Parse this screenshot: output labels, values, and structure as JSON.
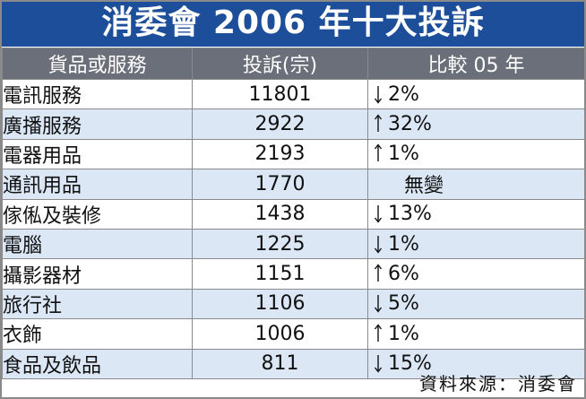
{
  "title": "消委會 2006 年十大投訴",
  "source": "資料來源：消委會",
  "colors": {
    "title_bg": "#1d4e9a",
    "header_bg": "#6a6f79",
    "row_alt_bg": "#dce7f6"
  },
  "chart_data": {
    "type": "table",
    "title": "消委會 2006 年十大投訴",
    "columns": [
      "貨品或服務",
      "投訴(宗)",
      "比較 05 年"
    ],
    "rows": [
      {
        "category": "電訊服務",
        "complaints": "11801",
        "direction": "down",
        "change": "2%"
      },
      {
        "category": "廣播服務",
        "complaints": "2922",
        "direction": "up",
        "change": "32%"
      },
      {
        "category": "電器用品",
        "complaints": "2193",
        "direction": "up",
        "change": "1%"
      },
      {
        "category": "通訊用品",
        "complaints": "1770",
        "direction": "none",
        "change": "無變"
      },
      {
        "category": "傢俬及裝修",
        "complaints": "1438",
        "direction": "down",
        "change": "13%"
      },
      {
        "category": "電腦",
        "complaints": "1225",
        "direction": "down",
        "change": "1%"
      },
      {
        "category": "攝影器材",
        "complaints": "1151",
        "direction": "up",
        "change": "6%"
      },
      {
        "category": "旅行社",
        "complaints": "1106",
        "direction": "down",
        "change": "5%"
      },
      {
        "category": "衣飾",
        "complaints": "1006",
        "direction": "up",
        "change": "1%"
      },
      {
        "category": "食品及飲品",
        "complaints": "811",
        "direction": "down",
        "change": "15%"
      }
    ]
  }
}
